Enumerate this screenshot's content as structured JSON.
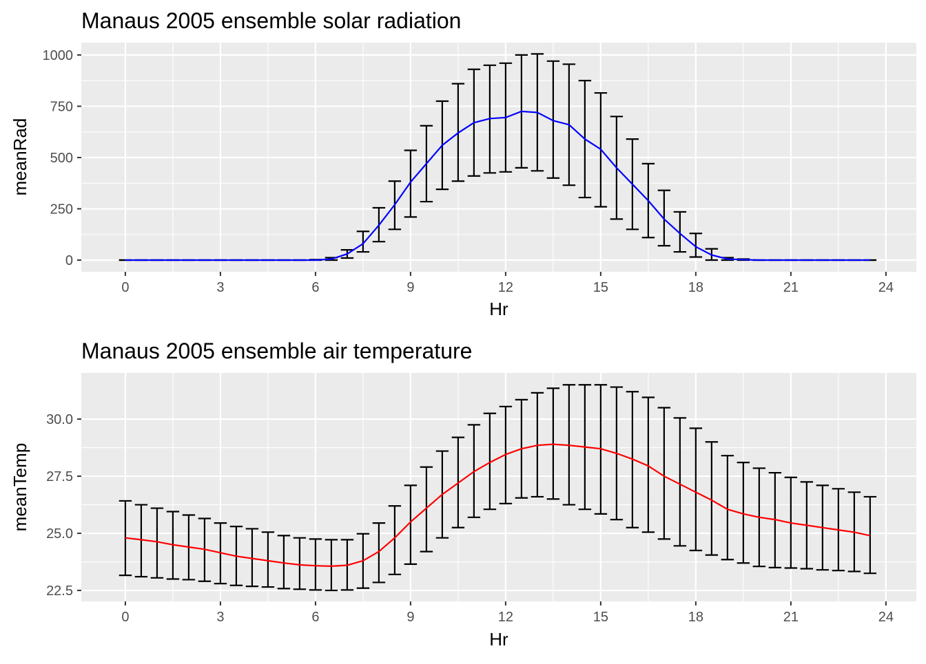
{
  "chart_data": [
    {
      "type": "line",
      "title": "Manaus 2005 ensemble solar radiation",
      "xlabel": "Hr",
      "ylabel": "meanRad",
      "xlim": [
        -1.39,
        24.96
      ],
      "ylim": [
        -57,
        1060
      ],
      "xticks": [
        0,
        3,
        6,
        9,
        12,
        15,
        18,
        21,
        24
      ],
      "yticks": [
        0,
        250,
        500,
        750,
        1000
      ],
      "ytick_labels": [
        "0",
        "250",
        "500",
        "750",
        "1000"
      ],
      "grid": true,
      "line_color": "#0000FF",
      "errorbar_color": "#000000",
      "x": [
        0,
        0.5,
        1,
        1.5,
        2,
        2.5,
        3,
        3.5,
        4,
        4.5,
        5,
        5.5,
        6,
        6.5,
        7,
        7.5,
        8,
        8.5,
        9,
        9.5,
        10,
        10.5,
        11,
        11.5,
        12,
        12.5,
        13,
        13.5,
        14,
        14.5,
        15,
        15.5,
        16,
        16.5,
        17,
        17.5,
        18,
        18.5,
        19,
        19.5,
        20,
        20.5,
        21,
        21.5,
        22,
        22.5,
        23,
        23.5
      ],
      "mean": [
        0,
        0,
        0,
        0,
        0,
        0,
        0,
        0,
        0,
        0,
        0,
        0,
        0,
        5,
        30,
        80,
        170,
        270,
        380,
        470,
        560,
        620,
        670,
        690,
        695,
        725,
        720,
        680,
        660,
        590,
        540,
        450,
        370,
        290,
        200,
        130,
        65,
        25,
        5,
        2,
        0,
        0,
        0,
        0,
        0,
        0,
        0,
        0
      ],
      "upper": [
        0,
        0,
        0,
        0,
        0,
        0,
        0,
        0,
        0,
        0,
        0,
        0,
        2,
        12,
        50,
        140,
        255,
        385,
        535,
        655,
        775,
        860,
        930,
        950,
        960,
        1000,
        1005,
        970,
        955,
        875,
        815,
        700,
        590,
        470,
        340,
        235,
        130,
        55,
        12,
        5,
        0,
        0,
        0,
        0,
        0,
        0,
        0,
        0
      ],
      "lower": [
        0,
        0,
        0,
        0,
        0,
        0,
        0,
        0,
        0,
        0,
        0,
        0,
        0,
        0,
        10,
        40,
        90,
        150,
        210,
        285,
        345,
        385,
        410,
        425,
        430,
        450,
        435,
        400,
        365,
        305,
        260,
        200,
        150,
        110,
        70,
        40,
        15,
        0,
        0,
        0,
        0,
        0,
        0,
        0,
        0,
        0,
        0,
        0
      ]
    },
    {
      "type": "line",
      "title": "Manaus 2005 ensemble air temperature",
      "xlabel": "Hr",
      "ylabel": "meanTemp",
      "xlim": [
        -1.39,
        24.96
      ],
      "ylim": [
        22.02,
        32.02
      ],
      "xticks": [
        0,
        3,
        6,
        9,
        12,
        15,
        18,
        21,
        24
      ],
      "yticks": [
        22.5,
        25,
        27.5,
        30
      ],
      "ytick_labels": [
        "22.5",
        "25.0",
        "27.5",
        "30.0"
      ],
      "grid": true,
      "line_color": "#FF0000",
      "errorbar_color": "#000000",
      "x": [
        0,
        0.5,
        1,
        1.5,
        2,
        2.5,
        3,
        3.5,
        4,
        4.5,
        5,
        5.5,
        6,
        6.5,
        7,
        7.5,
        8,
        8.5,
        9,
        9.5,
        10,
        10.5,
        11,
        11.5,
        12,
        12.5,
        13,
        13.5,
        14,
        14.5,
        15,
        15.5,
        16,
        16.5,
        17,
        17.5,
        18,
        18.5,
        19,
        19.5,
        20,
        20.5,
        21,
        21.5,
        22,
        22.5,
        23,
        23.5
      ],
      "mean": [
        24.8,
        24.72,
        24.63,
        24.5,
        24.4,
        24.3,
        24.15,
        24.0,
        23.9,
        23.8,
        23.7,
        23.62,
        23.58,
        23.56,
        23.6,
        23.8,
        24.2,
        24.8,
        25.5,
        26.1,
        26.7,
        27.2,
        27.7,
        28.1,
        28.45,
        28.7,
        28.85,
        28.9,
        28.85,
        28.78,
        28.7,
        28.5,
        28.25,
        27.95,
        27.5,
        27.15,
        26.8,
        26.45,
        26.05,
        25.85,
        25.7,
        25.6,
        25.45,
        25.35,
        25.25,
        25.15,
        25.05,
        24.9
      ],
      "upper": [
        26.42,
        26.25,
        26.1,
        25.95,
        25.8,
        25.65,
        25.45,
        25.3,
        25.2,
        25.05,
        24.9,
        24.8,
        24.75,
        24.72,
        24.72,
        24.98,
        25.45,
        26.2,
        27.1,
        27.9,
        28.6,
        29.2,
        29.75,
        30.25,
        30.55,
        30.85,
        31.15,
        31.35,
        31.5,
        31.5,
        31.5,
        31.4,
        31.2,
        30.95,
        30.5,
        30.05,
        29.6,
        29.0,
        28.4,
        28.1,
        27.85,
        27.65,
        27.45,
        27.25,
        27.1,
        26.95,
        26.8,
        26.6
      ],
      "lower": [
        23.16,
        23.1,
        23.05,
        23.0,
        22.97,
        22.9,
        22.8,
        22.72,
        22.68,
        22.65,
        22.58,
        22.55,
        22.52,
        22.5,
        22.52,
        22.6,
        22.85,
        23.2,
        23.65,
        24.2,
        24.8,
        25.25,
        25.7,
        26.05,
        26.3,
        26.55,
        26.6,
        26.5,
        26.25,
        26.05,
        25.85,
        25.6,
        25.25,
        25.05,
        24.75,
        24.45,
        24.25,
        24.05,
        23.85,
        23.7,
        23.55,
        23.5,
        23.48,
        23.45,
        23.4,
        23.37,
        23.33,
        23.25
      ]
    }
  ]
}
